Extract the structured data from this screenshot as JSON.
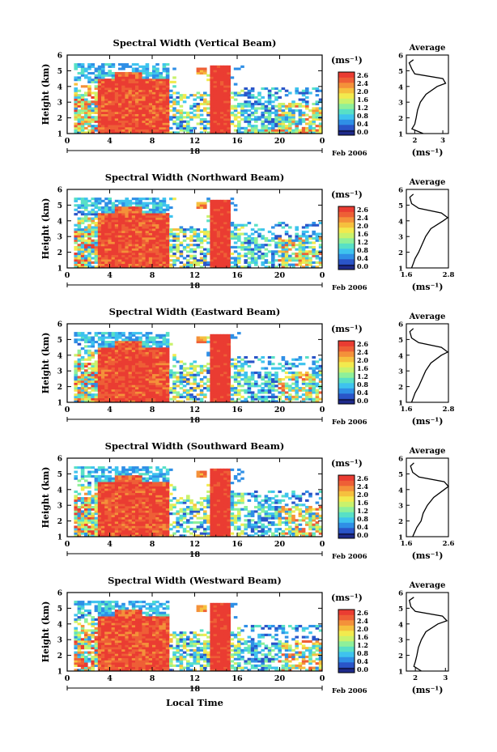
{
  "figure": {
    "xlabel": "Local Time",
    "date_label": "Feb 2006",
    "day_label": "18",
    "unit_label": "(ms⁻¹)",
    "avg_title": "Average",
    "avg_xlabel": "(ms⁻¹)"
  },
  "colorbar_ticks": [
    "2.6",
    "2.4",
    "2.0",
    "1.6",
    "1.2",
    "0.8",
    "0.4",
    "0.0"
  ],
  "palette": [
    "#1e2a8a",
    "#2a55c8",
    "#2f8fe6",
    "#3ec3ee",
    "#58e0c6",
    "#8ef09a",
    "#c9f26c",
    "#f2ea4e",
    "#f6c03e",
    "#f4913a",
    "#ee5f36",
    "#ea3c32"
  ],
  "chart_data": [
    {
      "type": "heatmap",
      "title": "Spectral Width (Vertical Beam)",
      "xlabel": "Local Time",
      "ylabel": "Height (km)",
      "x_ticks": [
        "0",
        "4",
        "8",
        "12",
        "16",
        "20",
        "0"
      ],
      "y_ticks": [
        "1",
        "2",
        "3",
        "4",
        "5",
        "6"
      ],
      "xlim": [
        0,
        24
      ],
      "ylim": [
        1,
        6
      ],
      "colorbar": {
        "ticks": [
          "2.6",
          "2.4",
          "2.0",
          "1.6",
          "1.2",
          "0.8",
          "0.4",
          "0.0"
        ]
      },
      "average": {
        "title": "Average",
        "xlabel": "(ms⁻¹)",
        "x_ticks": [
          "2",
          "3"
        ],
        "xlim": [
          1.7,
          3.2
        ],
        "height": [
          1.0,
          1.3,
          1.6,
          2.0,
          2.5,
          3.0,
          3.5,
          4.0,
          4.2,
          4.5,
          4.8,
          5.1,
          5.5,
          5.7
        ],
        "value": [
          2.3,
          1.9,
          2.0,
          2.05,
          2.1,
          2.2,
          2.4,
          2.8,
          3.1,
          3.0,
          2.0,
          1.9,
          1.8,
          1.95
        ]
      }
    },
    {
      "type": "heatmap",
      "title": "Spectral Width (Northward Beam)",
      "ylabel": "Height (km)",
      "x_ticks": [
        "0",
        "4",
        "8",
        "12",
        "16",
        "20",
        "0"
      ],
      "y_ticks": [
        "1",
        "2",
        "3",
        "4",
        "5",
        "6"
      ],
      "xlim": [
        0,
        24
      ],
      "ylim": [
        1,
        6
      ],
      "colorbar": {
        "ticks": [
          "2.6",
          "2.4",
          "2.0",
          "1.6",
          "1.2",
          "0.8",
          "0.4",
          "0.0"
        ]
      },
      "average": {
        "title": "Average",
        "xlabel": "(ms⁻¹)",
        "x_ticks": [
          "1.6",
          "2.8"
        ],
        "xlim": [
          1.6,
          2.8
        ],
        "height": [
          1.0,
          1.3,
          1.6,
          2.0,
          2.5,
          3.0,
          3.5,
          4.0,
          4.2,
          4.5,
          4.8,
          5.1,
          5.5,
          5.7
        ],
        "value": [
          1.75,
          1.8,
          1.85,
          1.95,
          2.05,
          2.15,
          2.3,
          2.65,
          2.78,
          2.6,
          1.95,
          1.75,
          1.7,
          1.8
        ]
      }
    },
    {
      "type": "heatmap",
      "title": "Spectral Width (Eastward Beam)",
      "ylabel": "Height (km)",
      "x_ticks": [
        "0",
        "4",
        "8",
        "12",
        "16",
        "20",
        "0"
      ],
      "y_ticks": [
        "1",
        "2",
        "3",
        "4",
        "5",
        "6"
      ],
      "xlim": [
        0,
        24
      ],
      "ylim": [
        1,
        6
      ],
      "colorbar": {
        "ticks": [
          "2.6",
          "2.4",
          "2.0",
          "1.6",
          "1.2",
          "0.8",
          "0.4",
          "0.0"
        ]
      },
      "average": {
        "title": "Average",
        "xlabel": "(ms⁻¹)",
        "x_ticks": [
          "1.6",
          "2.8"
        ],
        "xlim": [
          1.6,
          2.8
        ],
        "height": [
          1.0,
          1.3,
          1.6,
          2.0,
          2.5,
          3.0,
          3.5,
          4.0,
          4.2,
          4.5,
          4.8,
          5.1,
          5.5,
          5.7
        ],
        "value": [
          1.75,
          1.8,
          1.85,
          1.95,
          2.05,
          2.15,
          2.3,
          2.6,
          2.78,
          2.6,
          1.95,
          1.75,
          1.7,
          1.8
        ]
      }
    },
    {
      "type": "heatmap",
      "title": "Spectral Width (Southward Beam)",
      "ylabel": "Height (km)",
      "x_ticks": [
        "0",
        "4",
        "8",
        "12",
        "16",
        "20",
        "0"
      ],
      "y_ticks": [
        "1",
        "2",
        "3",
        "4",
        "5",
        "6"
      ],
      "xlim": [
        0,
        24
      ],
      "ylim": [
        1,
        6
      ],
      "colorbar": {
        "ticks": [
          "2.6",
          "2.4",
          "2.0",
          "1.6",
          "1.2",
          "0.8",
          "0.4",
          "0.0"
        ]
      },
      "average": {
        "title": "Average",
        "xlabel": "(ms⁻¹)",
        "x_ticks": [
          "1.6",
          "2.6"
        ],
        "xlim": [
          1.6,
          2.6
        ],
        "height": [
          1.0,
          1.3,
          1.6,
          2.0,
          2.5,
          3.0,
          3.5,
          4.0,
          4.2,
          4.5,
          4.8,
          5.1,
          5.5,
          5.7
        ],
        "value": [
          1.75,
          1.8,
          1.85,
          1.95,
          2.0,
          2.1,
          2.25,
          2.5,
          2.6,
          2.5,
          1.9,
          1.75,
          1.7,
          1.78
        ]
      }
    },
    {
      "type": "heatmap",
      "title": "Spectral Width (Westward Beam)",
      "ylabel": "Height (km)",
      "x_ticks": [
        "0",
        "4",
        "8",
        "12",
        "16",
        "20",
        "0"
      ],
      "y_ticks": [
        "1",
        "2",
        "3",
        "4",
        "5",
        "6"
      ],
      "xlim": [
        0,
        24
      ],
      "ylim": [
        1,
        6
      ],
      "colorbar": {
        "ticks": [
          "2.6",
          "2.4",
          "2.0",
          "1.6",
          "1.2",
          "0.8",
          "0.4",
          "0.0"
        ]
      },
      "average": {
        "title": "Average",
        "xlabel": "(ms⁻¹)",
        "x_ticks": [
          "2",
          "3"
        ],
        "xlim": [
          1.7,
          3.1
        ],
        "height": [
          1.0,
          1.3,
          1.6,
          2.0,
          2.5,
          3.0,
          3.5,
          4.0,
          4.2,
          4.5,
          4.8,
          5.1,
          5.5,
          5.7
        ],
        "value": [
          2.2,
          1.95,
          2.0,
          2.05,
          2.1,
          2.2,
          2.35,
          2.75,
          3.05,
          2.9,
          2.0,
          1.85,
          1.8,
          1.95
        ]
      }
    }
  ]
}
